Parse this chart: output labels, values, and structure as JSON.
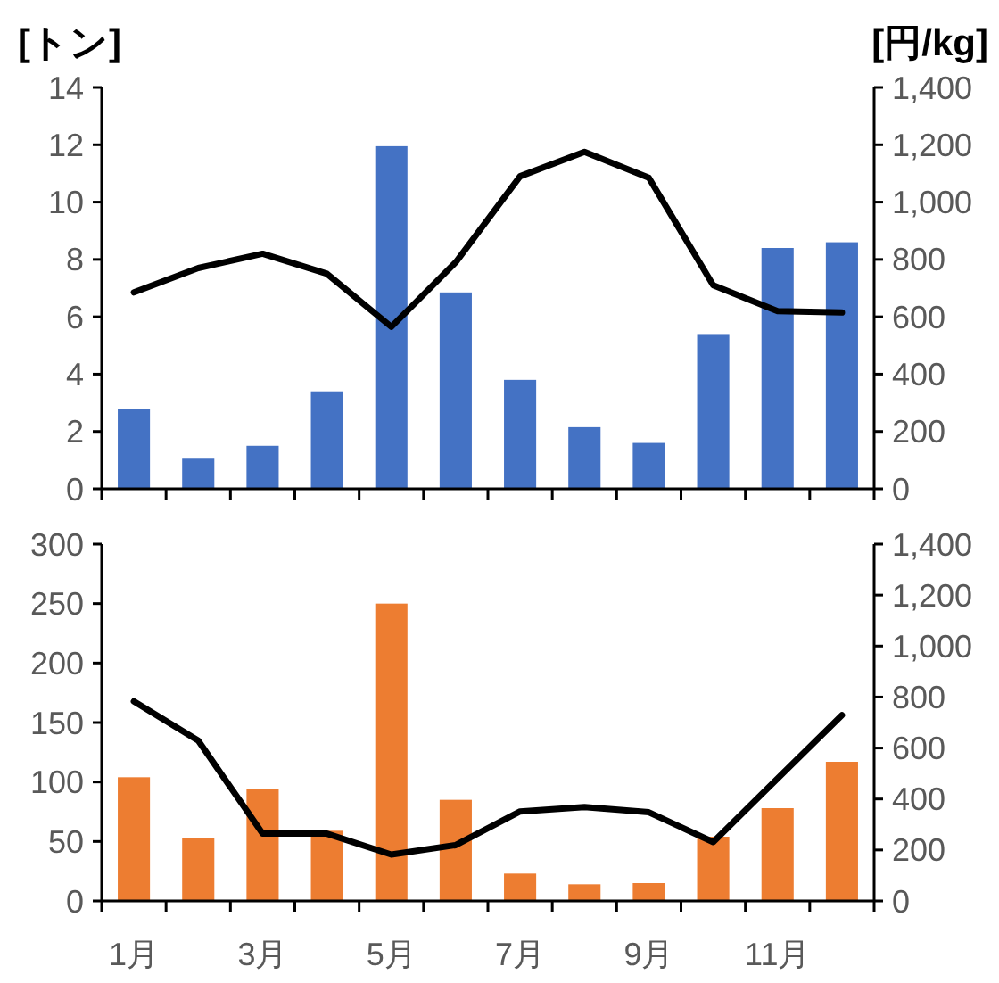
{
  "chart_data": [
    {
      "type": "bar",
      "ylabel": "[トン]",
      "y2label": "[円/kg]",
      "categories": [
        null,
        null,
        null,
        null,
        null,
        null,
        null,
        null,
        null,
        null,
        null,
        null
      ],
      "ylim": [
        0,
        14
      ],
      "yticks": [
        0,
        2,
        4,
        6,
        8,
        10,
        12,
        14
      ],
      "y2lim": [
        0,
        1400
      ],
      "y2ticks": [
        {
          "value": 0,
          "label": "0"
        },
        {
          "value": 200,
          "label": "200"
        },
        {
          "value": 400,
          "label": "400"
        },
        {
          "value": 600,
          "label": "600"
        },
        {
          "value": 800,
          "label": "800"
        },
        {
          "value": 1000,
          "label": "1,000"
        },
        {
          "value": 1200,
          "label": "1,200"
        },
        {
          "value": 1400,
          "label": "1,400"
        }
      ],
      "grid": false,
      "series": [
        {
          "color": "#4472c4",
          "values": [
            2.8,
            1.05,
            1.5,
            3.4,
            11.95,
            6.85,
            3.8,
            2.15,
            1.6,
            5.4,
            8.4,
            8.6
          ]
        },
        {
          "type": "line",
          "axis": "y2",
          "color": "#000000",
          "marker": "none",
          "line_style": "solid",
          "values": [
            685,
            770,
            820,
            750,
            565,
            790,
            1090,
            1175,
            1085,
            710,
            620,
            615
          ]
        }
      ]
    },
    {
      "type": "bar",
      "categories": [
        "1月",
        null,
        "3月",
        null,
        "5月",
        null,
        "7月",
        null,
        "9月",
        null,
        "11月",
        null
      ],
      "ylim": [
        0,
        300
      ],
      "yticks": [
        0,
        50,
        100,
        150,
        200,
        250,
        300
      ],
      "y2lim": [
        0,
        1400
      ],
      "y2ticks": [
        {
          "value": 0,
          "label": "0"
        },
        {
          "value": 200,
          "label": "200"
        },
        {
          "value": 400,
          "label": "400"
        },
        {
          "value": 600,
          "label": "600"
        },
        {
          "value": 800,
          "label": "800"
        },
        {
          "value": 1000,
          "label": "1,000"
        },
        {
          "value": 1200,
          "label": "1,200"
        },
        {
          "value": 1400,
          "label": "1,400"
        }
      ],
      "grid": false,
      "series": [
        {
          "color": "#ed7d31",
          "values": [
            104,
            53,
            94,
            59,
            250,
            85,
            23,
            14,
            15,
            54,
            78,
            117
          ]
        },
        {
          "type": "line",
          "axis": "y2",
          "color": "#000000",
          "marker": "none",
          "line_style": "solid",
          "values": [
            783,
            629,
            264,
            264,
            182,
            219,
            351,
            368,
            348,
            231,
            480,
            729
          ]
        }
      ]
    }
  ]
}
